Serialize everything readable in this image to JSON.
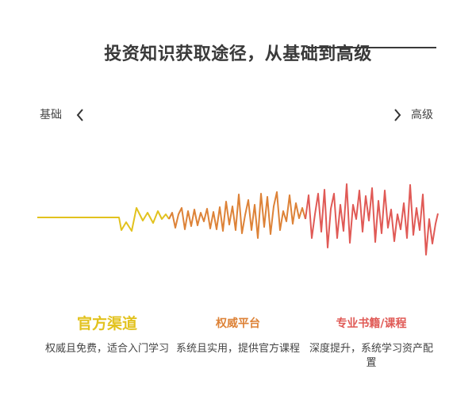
{
  "title": "投资知识获取途径，从基础到高级",
  "axis": {
    "left_label": "基础",
    "right_label": "高级"
  },
  "icons": {
    "left": "chevron-left-icon",
    "right": "chevron-right-icon"
  },
  "colors": {
    "stage1": "#e2c21e",
    "stage2": "#dd8237",
    "stage3": "#e05a56",
    "text": "#3a3a3a"
  },
  "stages": [
    {
      "title": "官方渠道",
      "desc": "权威且免费，适合入门学习"
    },
    {
      "title": "权威平台",
      "desc": "系统且实用，提供官方课程"
    },
    {
      "title": "专业书籍/课程",
      "desc": "深度提升，系统学习资产配置"
    }
  ]
}
